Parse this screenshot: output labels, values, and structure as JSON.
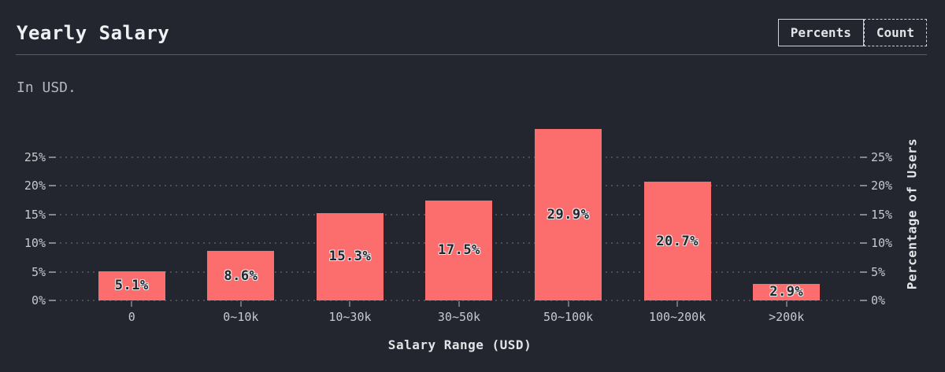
{
  "header": {
    "title": "Yearly Salary",
    "subtitle": "In USD.",
    "toggle": {
      "percents_label": "Percents",
      "count_label": "Count",
      "selected": "Percents"
    }
  },
  "chart_data": {
    "type": "bar",
    "title": "Yearly Salary",
    "categories": [
      "0",
      "0~10k",
      "10~30k",
      "30~50k",
      "50~100k",
      "100~200k",
      ">200k"
    ],
    "values": [
      5.1,
      8.6,
      15.3,
      17.5,
      29.9,
      20.7,
      2.9
    ],
    "value_labels": [
      "5.1%",
      "8.6%",
      "15.3%",
      "17.5%",
      "29.9%",
      "20.7%",
      "2.9%"
    ],
    "xlabel": "Salary Range (USD)",
    "ylabel": "Percentage of Users",
    "yticks": [
      0,
      5,
      10,
      15,
      20,
      25
    ],
    "ytick_labels": [
      "0%",
      "5%",
      "10%",
      "15%",
      "20%",
      "25%"
    ],
    "ylim": [
      0,
      32
    ],
    "grid": "horizontal-dotted",
    "legend_position": "none",
    "bar_color": "#fc6d6d"
  },
  "colors": {
    "background": "#23262e",
    "bar": "#fc6d6d",
    "text_primary": "#eef0f2",
    "text_secondary": "#b3b6bd",
    "axis_text": "#c6c9ce",
    "grid_dots": "#4c4f57",
    "tick_dash": "#83868d",
    "divider": "#595b68",
    "bar_label_text": "#24262c",
    "bar_label_outline": "#e4e5e8"
  }
}
